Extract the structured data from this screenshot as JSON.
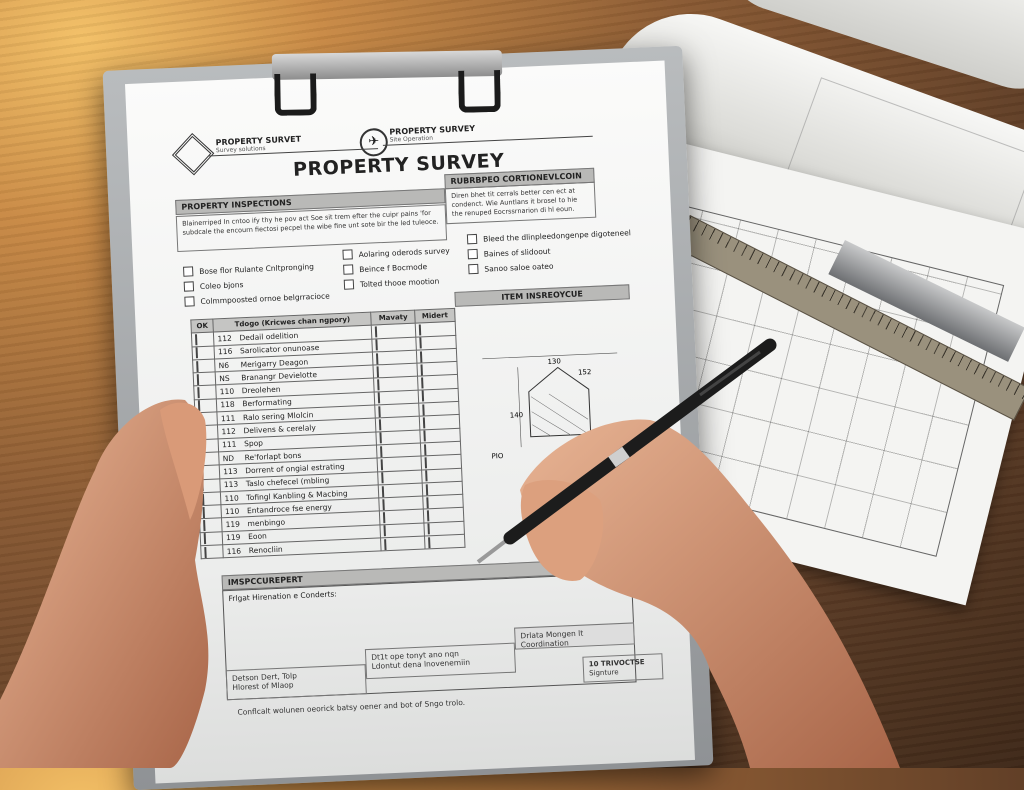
{
  "form": {
    "logo_left": {
      "title": "PROPERTY SURVET",
      "subtitle": "Survey solutions"
    },
    "logo_right": {
      "title": "PROPERTY SURVEY",
      "subtitle": "Site Operation"
    },
    "title": "PROPERTY SURVEY",
    "section_left_header": "PROPERTY INSPECTIONS",
    "section_right_header": "RUBRBPEO CORTIONEVLCOIN",
    "left_text": "Blainerriped In cntoo ify thy he pov act Soe sit trem efter the cuipr pains 'for subdcale the encourn fiectosi pecpel the wibe fine unt sote bir the led tuleoce.",
    "right_text": "Diren bhet tit cerrals better cen ect at condenct. Wie Auntlans it brosel to hie the renuped Eocrssrnarion di hl eoun.",
    "checklist_col1": [
      "Bose flor Rulante Cnltpronging",
      "Coleo bjons",
      "Colmmpoosted ornoe belgrracioce"
    ],
    "checklist_col2": [
      "Aolaring oderods survey",
      "Beince f Bocmode",
      "Tolted thooe mootion"
    ],
    "checklist_col3": [
      "Bleed the dlinpleedongenpe digoteneel",
      "Baines of slidoout",
      "Sanoo saloe oateo"
    ],
    "table": {
      "headers": [
        "OK",
        "Tdogo (Kricwes chan ngpory)",
        "Mavaty",
        "Midert"
      ],
      "rows": [
        {
          "num": "112",
          "label": "Dedail odelition"
        },
        {
          "num": "116",
          "label": "Sarolicator onunoase"
        },
        {
          "num": "N6",
          "label": "Merigarry Deagon"
        },
        {
          "num": "NS",
          "label": "Branangr Devielotte"
        },
        {
          "num": "110",
          "label": "Dreolehen"
        },
        {
          "num": "118",
          "label": "Berformating"
        },
        {
          "num": "111",
          "label": "Ralo sering Mlolcin"
        },
        {
          "num": "112",
          "label": "Delivens & cerelaly"
        },
        {
          "num": "111",
          "label": "Spop"
        },
        {
          "num": "ND",
          "label": "Re'forlapt bons"
        },
        {
          "num": "113",
          "label": "Dorrent of ongial estrating"
        },
        {
          "num": "113",
          "label": "Taslo chefecel (mbling"
        },
        {
          "num": "110",
          "label": "Tofingl Kanbling & Macbing"
        },
        {
          "num": "110",
          "label": "Entandroce fse energy"
        },
        {
          "num": "119",
          "label": "menbingo"
        },
        {
          "num": "119",
          "label": "Eoon"
        },
        {
          "num": "116",
          "label": "Renocliin"
        }
      ]
    },
    "drawing_header": "ITEM INSREOYCUE",
    "drawing_dims": {
      "top": "130",
      "roof": "152",
      "side": "140",
      "left": "PIO"
    },
    "report_header": "IMSPCCUREPERT",
    "report_label": "Frlgat Hirenation e Conderts:",
    "footer_box1": [
      "Detson Dert, Tolp",
      "Hlorest of Mlaop"
    ],
    "footer_box2": [
      "Dt1t ope tonyt ano nqn",
      "Ldontut dena lnovenemiin"
    ],
    "footer_box3": "Drlata Mongen lt Coordination",
    "footer_box4": {
      "title": "10 TRIVOCTSE",
      "sub": "Signture"
    },
    "footer_note": "Conflcalt wolunen oeorick batsy oener and bot of Sngo trolo."
  },
  "colors": {
    "desk": "#6b4529",
    "paper": "#f7f7f6",
    "header_bar": "#b9b9b7",
    "skin": "#d99a78",
    "pen": "#1c1c1c"
  }
}
